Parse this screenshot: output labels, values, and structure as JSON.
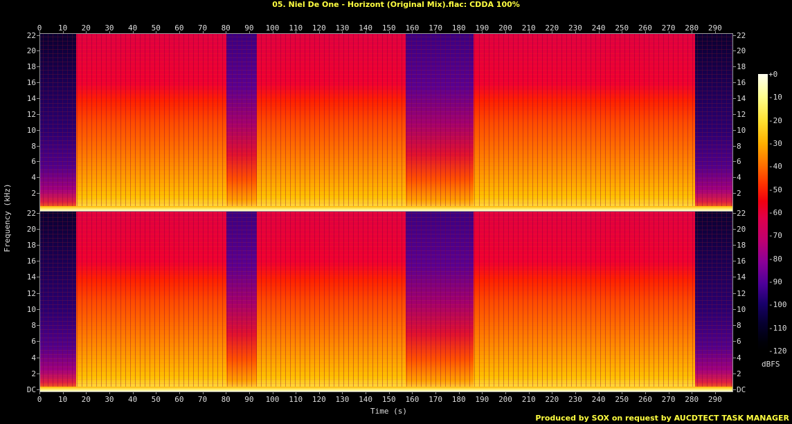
{
  "title": "05. Niel De One - Horizont (Original Mix).flac: CDDA 100%",
  "credit": "Produced by SOX on request by AUCDTECT TASK MANAGER",
  "chart_data": {
    "type": "heatmap",
    "title": "05. Niel De One - Horizont (Original Mix).flac: CDDA 100%",
    "xlabel": "Time (s)",
    "ylabel": "Frequency (kHz)",
    "channels": 2,
    "xlim": [
      0,
      298
    ],
    "ylim_khz": [
      0,
      22.05
    ],
    "x_ticks": [
      0,
      10,
      20,
      30,
      40,
      50,
      60,
      70,
      80,
      90,
      100,
      110,
      120,
      130,
      140,
      150,
      160,
      170,
      180,
      190,
      200,
      210,
      220,
      230,
      240,
      250,
      260,
      270,
      280,
      290
    ],
    "y_ticks": [
      "DC",
      "2",
      "4",
      "6",
      "8",
      "10",
      "12",
      "14",
      "16",
      "18",
      "20",
      "22"
    ],
    "colorbar": {
      "label": "dBFS",
      "ticks": [
        "+0",
        "-10",
        "-20",
        "-30",
        "-40",
        "-50",
        "-60",
        "-70",
        "-80",
        "-90",
        "-100",
        "-110",
        "-120"
      ],
      "range": [
        -120,
        0
      ]
    },
    "segments": [
      {
        "start": 0,
        "end": 15.5,
        "level": "quiet",
        "note": "intro, low energy (-90..-100 dBFS above 4 kHz)"
      },
      {
        "start": 15.5,
        "end": 80,
        "level": "loud",
        "note": "full band, -30..-50 dBFS"
      },
      {
        "start": 80,
        "end": 93,
        "level": "breakdown",
        "note": "high frequencies filtered out, sweep down"
      },
      {
        "start": 93,
        "end": 157,
        "level": "loud"
      },
      {
        "start": 157,
        "end": 186,
        "level": "breakdown",
        "note": "gradual low-pass sweep"
      },
      {
        "start": 186,
        "end": 281,
        "level": "loud"
      },
      {
        "start": 281,
        "end": 298,
        "level": "quiet",
        "note": "outro fade"
      }
    ],
    "grid": false,
    "legend_position": "right"
  },
  "axis": {
    "x_label": "Time (s)",
    "y_label": "Frequency (kHz)",
    "cbar_unit": "dBFS"
  }
}
